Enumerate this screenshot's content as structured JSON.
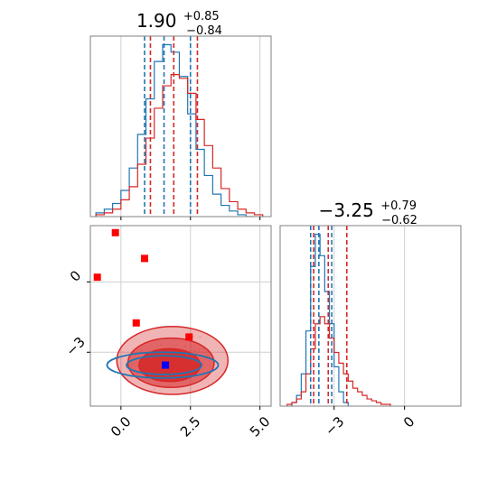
{
  "chart_data": [
    {
      "type": "histogram",
      "panel": "param1-marginal",
      "title": {
        "value": "1.90",
        "plus": "+0.85",
        "minus": "−0.84"
      },
      "x_range": [
        -1.1,
        5.4
      ],
      "grid": true,
      "series": [
        {
          "name": "",
          "color": "#1f77b4",
          "bins": [
            -0.9,
            -0.6,
            -0.3,
            0.0,
            0.3,
            0.6,
            0.9,
            1.2,
            1.5,
            1.8,
            2.1,
            2.4,
            2.7,
            3.0,
            3.3,
            3.6,
            3.9,
            4.2,
            4.5
          ],
          "counts": [
            2,
            4,
            7,
            14,
            26,
            44,
            63,
            83,
            92,
            88,
            75,
            55,
            36,
            22,
            12,
            6,
            3,
            1,
            0
          ],
          "quantiles": [
            0.85,
            1.55,
            2.5
          ]
        },
        {
          "name": "",
          "color": "#d62728",
          "bins": [
            -0.9,
            -0.6,
            -0.3,
            0.0,
            0.3,
            0.6,
            0.9,
            1.2,
            1.5,
            1.8,
            2.1,
            2.4,
            2.7,
            3.0,
            3.3,
            3.6,
            3.9,
            4.2,
            4.5,
            4.8
          ],
          "counts": [
            1,
            2,
            4,
            9,
            16,
            28,
            42,
            58,
            70,
            76,
            74,
            66,
            52,
            38,
            26,
            15,
            8,
            4,
            2,
            1
          ],
          "quantiles": [
            1.06,
            1.9,
            2.75
          ]
        }
      ]
    },
    {
      "type": "histogram",
      "panel": "param2-marginal",
      "title": {
        "value": "−3.25",
        "plus": "+0.79",
        "minus": "−0.62"
      },
      "x_range": [
        -5.3,
        2.4
      ],
      "grid": true,
      "series": [
        {
          "name": "",
          "color": "#1f77b4",
          "bins": [
            -4.8,
            -4.6,
            -4.4,
            -4.2,
            -4.0,
            -3.8,
            -3.6,
            -3.4,
            -3.2,
            -3.0,
            -2.8,
            -2.6
          ],
          "counts": [
            2,
            6,
            18,
            42,
            78,
            96,
            84,
            64,
            46,
            22,
            8,
            2
          ],
          "quantiles": [
            -4.0,
            -3.65,
            -3.1
          ]
        },
        {
          "name": "",
          "color": "#d62728",
          "bins": [
            -5.0,
            -4.8,
            -4.6,
            -4.4,
            -4.2,
            -4.0,
            -3.8,
            -3.6,
            -3.4,
            -3.2,
            -3.0,
            -2.8,
            -2.6,
            -2.4,
            -2.2,
            -2.0,
            -1.8,
            -1.6,
            -1.4,
            -1.2,
            -1.0,
            -0.8
          ],
          "counts": [
            1,
            2,
            4,
            8,
            18,
            32,
            46,
            50,
            46,
            38,
            30,
            24,
            18,
            14,
            10,
            8,
            6,
            4,
            3,
            2,
            1,
            1
          ],
          "quantiles": [
            -3.87,
            -3.25,
            -2.46
          ]
        }
      ]
    },
    {
      "type": "scatter",
      "panel": "joint",
      "x_range": [
        -1.1,
        5.4
      ],
      "y_range": [
        -5.3,
        2.4
      ],
      "grid": true,
      "xticks": [
        "0.0",
        "2.5",
        "5.0"
      ],
      "yticks": [
        "−3",
        "0"
      ],
      "red_density": {
        "color": "#d62728",
        "levels": [
          {
            "cx": 1.85,
            "cy": -3.35,
            "rx": 2.0,
            "ry": 1.45
          },
          {
            "cx": 1.8,
            "cy": -3.45,
            "rx": 1.55,
            "ry": 1.05
          },
          {
            "cx": 1.75,
            "cy": -3.55,
            "rx": 1.1,
            "ry": 0.7
          }
        ]
      },
      "blue_density": {
        "color": "#1f77b4",
        "levels": [
          {
            "cx": 1.5,
            "cy": -3.55,
            "rx": 2.0,
            "ry": 0.55
          },
          {
            "cx": 1.55,
            "cy": -3.55,
            "rx": 1.35,
            "ry": 0.4
          }
        ]
      },
      "red_markers": [
        {
          "x": -0.2,
          "y": 2.1
        },
        {
          "x": 0.85,
          "y": 1.0
        },
        {
          "x": -0.85,
          "y": 0.2
        },
        {
          "x": 0.55,
          "y": -1.75
        },
        {
          "x": 2.45,
          "y": -2.35
        }
      ],
      "blue_markers": [
        {
          "x": 1.6,
          "y": -3.55
        }
      ]
    }
  ]
}
